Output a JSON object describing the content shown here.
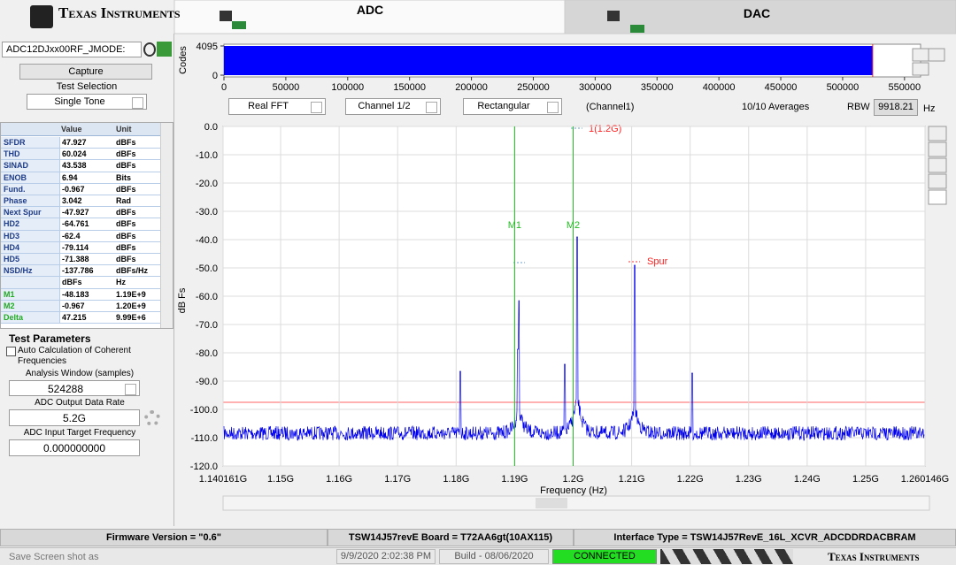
{
  "header": {
    "logo": "Texas Instruments"
  },
  "left": {
    "device": "ADC12DJxx00RF_JMODE:",
    "capture": "Capture",
    "test_selection_label": "Test Selection",
    "test_selection": "Single Tone",
    "table": {
      "columns": [
        "Value",
        "Unit"
      ],
      "rows": [
        {
          "name": "SFDR",
          "value": "47.927",
          "unit": "dBFs"
        },
        {
          "name": "THD",
          "value": "60.024",
          "unit": "dBFs"
        },
        {
          "name": "SINAD",
          "value": "43.538",
          "unit": "dBFs"
        },
        {
          "name": "ENOB",
          "value": "6.94",
          "unit": "Bits"
        },
        {
          "name": "Fund.",
          "value": "-0.967",
          "unit": "dBFs"
        },
        {
          "name": "Phase",
          "value": "3.042",
          "unit": "Rad"
        },
        {
          "name": "Next Spur",
          "value": "-47.927",
          "unit": "dBFs"
        },
        {
          "name": "HD2",
          "value": "-64.761",
          "unit": "dBFs"
        },
        {
          "name": "HD3",
          "value": "-62.4",
          "unit": "dBFs"
        },
        {
          "name": "HD4",
          "value": "-79.114",
          "unit": "dBFs"
        },
        {
          "name": "HD5",
          "value": "-71.388",
          "unit": "dBFs"
        },
        {
          "name": "NSD/Hz",
          "value": "-137.786",
          "unit": "dBFs/Hz"
        },
        {
          "value": "dBFs",
          "unit": "Hz"
        },
        {
          "name": "M1",
          "value": "-48.183",
          "unit": "1.19E+9",
          "color": "#22aa22"
        },
        {
          "name": "M2",
          "value": "-0.967",
          "unit": "1.20E+9",
          "color": "#22aa22"
        },
        {
          "name": "Delta",
          "value": "47.215",
          "unit": "9.99E+6",
          "color": "#22aa22"
        }
      ]
    },
    "test_parameters": {
      "title": "Test Parameters",
      "auto_coherent": "Auto Calculation of Coherent",
      "auto_coherent_2": "Frequencies",
      "analysis_window_label": "Analysis Window (samples)",
      "analysis_window": "524288",
      "output_rate_label": "ADC Output Data Rate",
      "output_rate": "5.2G",
      "target_freq_label": "ADC Input Target Frequency",
      "target_freq": "0.000000000"
    }
  },
  "tabs": [
    "ADC",
    "DAC"
  ],
  "strip": {
    "ylabel": "Codes",
    "ylim": [
      0,
      4095
    ],
    "yticks": [
      0,
      4095
    ],
    "xlim": [
      0,
      563000
    ],
    "xticks": [
      0,
      50000,
      100000,
      150000,
      200000,
      250000,
      300000,
      350000,
      400000,
      450000,
      500000,
      550000
    ],
    "samples": 524288
  },
  "controls": {
    "fft": "Real FFT",
    "channel": "Channel 1/2",
    "window": "Rectangular",
    "channel_name": "(Channel1)",
    "averages": "10/10 Averages",
    "rbw_label": "RBW",
    "rbw": "9918.21",
    "rbw_unit": "Hz"
  },
  "plot": {
    "ylabel": "dB Fs",
    "xlabel": "Frequency (Hz)",
    "ylim": [
      -120,
      0
    ],
    "yticks": [
      {
        "value": 0,
        "label": "0.0"
      },
      {
        "value": -10,
        "label": "-10.0"
      },
      {
        "value": -20,
        "label": "-20.0"
      },
      {
        "value": -30,
        "label": "-30.0"
      },
      {
        "value": -40,
        "label": "-40.0"
      },
      {
        "value": -50,
        "label": "-50.0"
      },
      {
        "value": -60,
        "label": "-60.0"
      },
      {
        "value": -70,
        "label": "-70.0"
      },
      {
        "value": -80,
        "label": "-80.0"
      },
      {
        "value": -90,
        "label": "-90.0"
      },
      {
        "value": -100,
        "label": "-100.0"
      },
      {
        "value": -110,
        "label": "-110.0"
      },
      {
        "value": -120,
        "label": "-120.0"
      }
    ],
    "xlim": [
      1140161000,
      1260146000
    ],
    "xticks": [
      {
        "value": 1140161000,
        "label": "1.140161G"
      },
      {
        "value": 1150000000,
        "label": "1.15G"
      },
      {
        "value": 1160000000,
        "label": "1.16G"
      },
      {
        "value": 1170000000,
        "label": "1.17G"
      },
      {
        "value": 1180000000,
        "label": "1.18G"
      },
      {
        "value": 1190000000,
        "label": "1.19G"
      },
      {
        "value": 1200000000,
        "label": "1.2G"
      },
      {
        "value": 1210000000,
        "label": "1.21G"
      },
      {
        "value": 1220000000,
        "label": "1.22G"
      },
      {
        "value": 1230000000,
        "label": "1.23G"
      },
      {
        "value": 1240000000,
        "label": "1.24G"
      },
      {
        "value": 1250000000,
        "label": "1.25G"
      },
      {
        "value": 1260146000,
        "label": "1.260146G"
      }
    ],
    "markers": [
      {
        "label": "M1",
        "x": 1190000000
      },
      {
        "label": "M2",
        "x": 1200000000
      }
    ],
    "annotations": [
      "1(1.2G)",
      "Spur"
    ]
  },
  "status": {
    "firmware": "Firmware Version = \"0.6\"",
    "board": "TSW14J57revE Board = T72AA6gt(10AX115)",
    "interface": "Interface Type = TSW14J57RevE_16L_XCVR_ADCDDRDACBRAM",
    "save": "Save Screen shot as",
    "datetime": "9/9/2020 2:02:38 PM",
    "build": "Build - 08/06/2020",
    "connection": "CONNECTED",
    "logo": "Texas Instruments"
  }
}
